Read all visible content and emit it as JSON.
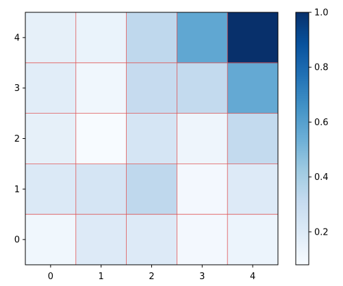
{
  "chart_data": {
    "type": "heatmap",
    "colormap": "Blues",
    "x_categories": [
      "0",
      "1",
      "2",
      "3",
      "4"
    ],
    "y_categories": [
      "0",
      "1",
      "2",
      "3",
      "4"
    ],
    "values_by_row_bottom_to_top": [
      [
        0.11,
        0.2,
        0.2,
        0.1,
        0.13
      ],
      [
        0.21,
        0.24,
        0.33,
        0.1,
        0.2
      ],
      [
        0.16,
        0.08,
        0.24,
        0.12,
        0.32
      ],
      [
        0.18,
        0.11,
        0.31,
        0.32,
        0.56
      ],
      [
        0.16,
        0.14,
        0.33,
        0.57,
        1.0
      ]
    ],
    "value_range": [
      0.08,
      1.0
    ],
    "colorbar": {
      "ticks": [
        0.2,
        0.4,
        0.6,
        0.8,
        1.0
      ],
      "tick_labels": [
        "0.2",
        "0.4",
        "0.6",
        "0.8",
        "1.0"
      ]
    },
    "grid": true,
    "grid_color": "#e05555",
    "legend": "none"
  }
}
